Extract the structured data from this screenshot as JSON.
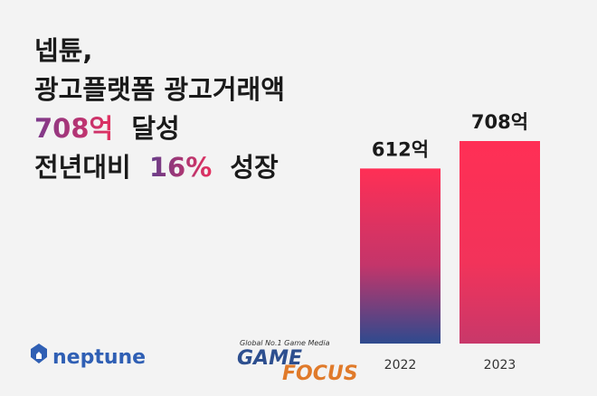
{
  "chart_data": {
    "type": "bar",
    "title_lines": [
      [
        "넵튠,"
      ],
      [
        "광고플랫폼 광고거래액"
      ],
      [
        "708억",
        "달성"
      ],
      [
        "전년대비",
        "16%",
        "성장"
      ]
    ],
    "categories": [
      "2022",
      "2023"
    ],
    "values": [
      612,
      708
    ],
    "value_labels": [
      "612억",
      "708억"
    ],
    "logos": {
      "brand": "neptune",
      "media_tagline": "Global No.1 Game Media",
      "media_line1": "GAME",
      "media_line2": "FOCUS"
    }
  }
}
